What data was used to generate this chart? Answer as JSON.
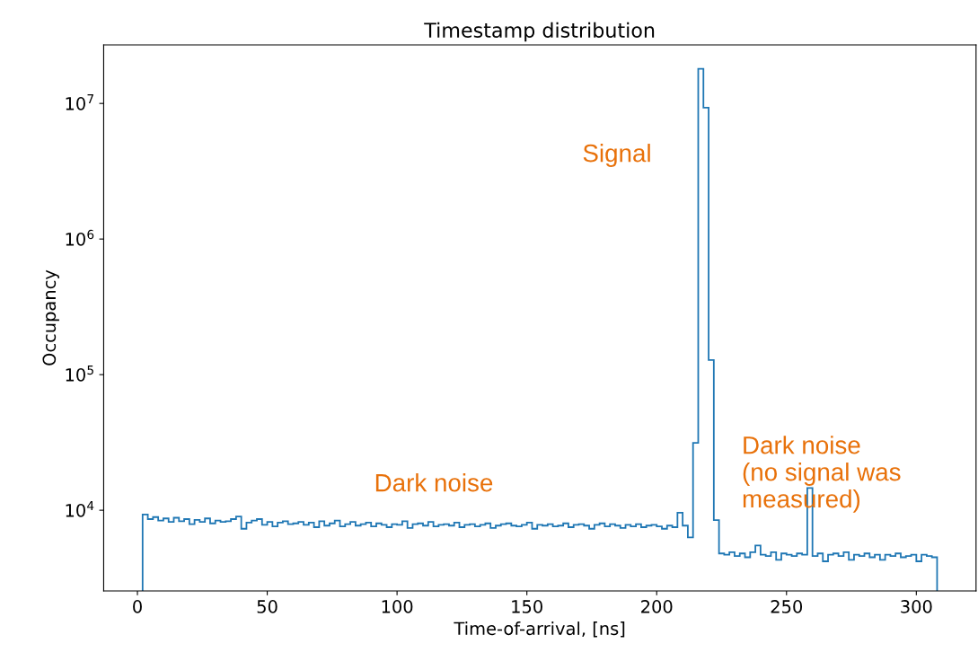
{
  "chart_data": {
    "type": "histogram",
    "title": "Timestamp distribution",
    "xlabel": "Time-of-arrival, [ns]",
    "ylabel": "Occupancy",
    "color": "#1f77b4",
    "log": "y",
    "bins": [
      2,
      4,
      6,
      8,
      10,
      12,
      14,
      16,
      18,
      20,
      22,
      24,
      26,
      28,
      30,
      32,
      34,
      36,
      38,
      40,
      42,
      44,
      46,
      48,
      50,
      52,
      54,
      56,
      58,
      60,
      62,
      64,
      66,
      68,
      70,
      72,
      74,
      76,
      78,
      80,
      82,
      84,
      86,
      88,
      90,
      92,
      94,
      96,
      98,
      100,
      102,
      104,
      106,
      108,
      110,
      112,
      114,
      116,
      118,
      120,
      122,
      124,
      126,
      128,
      130,
      132,
      134,
      136,
      138,
      140,
      142,
      144,
      146,
      148,
      150,
      152,
      154,
      156,
      158,
      160,
      162,
      164,
      166,
      168,
      170,
      172,
      174,
      176,
      178,
      180,
      182,
      184,
      186,
      188,
      190,
      192,
      194,
      196,
      198,
      200,
      202,
      204,
      206,
      208,
      210,
      212,
      214,
      216,
      218,
      220,
      222,
      224,
      226,
      228,
      230,
      232,
      234,
      236,
      238,
      240,
      242,
      244,
      246,
      248,
      250,
      252,
      254,
      256,
      258,
      260,
      262,
      264,
      266,
      268,
      270,
      272,
      274,
      276,
      278,
      280,
      282,
      284,
      286,
      288,
      290,
      292,
      294,
      296,
      298,
      300,
      302,
      304,
      306,
      308
    ],
    "values": [
      9300,
      8600,
      8900,
      8400,
      8700,
      8200,
      8800,
      8300,
      8600,
      7900,
      8500,
      8200,
      8700,
      8000,
      8400,
      8200,
      8300,
      8600,
      9000,
      7300,
      8100,
      8400,
      8600,
      7800,
      8200,
      7600,
      8100,
      8300,
      7900,
      8000,
      8200,
      7800,
      8100,
      7500,
      8300,
      7700,
      8000,
      8400,
      7600,
      7900,
      8200,
      7700,
      7900,
      8100,
      7600,
      8000,
      7800,
      7500,
      7900,
      7800,
      8300,
      7400,
      7900,
      8000,
      7700,
      8200,
      7600,
      7800,
      7900,
      7700,
      8100,
      7500,
      7800,
      7900,
      7600,
      7800,
      8000,
      7400,
      7700,
      7900,
      8000,
      7700,
      7600,
      7800,
      8100,
      7300,
      7800,
      7700,
      7900,
      7600,
      7700,
      8000,
      7500,
      7800,
      7900,
      7700,
      7300,
      7800,
      8000,
      7600,
      7900,
      7700,
      7400,
      7800,
      7600,
      7900,
      7500,
      7700,
      7800,
      7600,
      7300,
      7700,
      7500,
      9600,
      7700,
      6300,
      31400,
      18000000,
      9300000,
      128000,
      8450,
      4800,
      4700,
      4900,
      4600,
      4800,
      4500,
      4900,
      5500,
      4700,
      4600,
      4900,
      4300,
      4800,
      4700,
      4600,
      4800,
      4700,
      14600,
      4600,
      4800,
      4200,
      4700,
      4800,
      4600,
      4900,
      4300,
      4700,
      4600,
      4800,
      4500,
      4700,
      4300,
      4700,
      4600,
      4800,
      4500,
      4600,
      4700,
      4200,
      4700,
      4600,
      4500
    ],
    "xlim": [
      -13,
      323
    ],
    "xticks": [
      0,
      50,
      100,
      150,
      200,
      250,
      300
    ],
    "ylim": [
      2540,
      27000000
    ],
    "yticks": [
      {
        "value": 10000,
        "label": "10$^{4}$"
      },
      {
        "value": 100000,
        "label": "10$^{5}$"
      },
      {
        "value": 1000000,
        "label": "10$^{6}$"
      },
      {
        "value": 10000000,
        "label": "10$^{7}$"
      }
    ],
    "grid": false,
    "annotations": [
      "Signal",
      "Dark noise",
      "Dark noise\n(no signal was\nmeasured)"
    ]
  }
}
